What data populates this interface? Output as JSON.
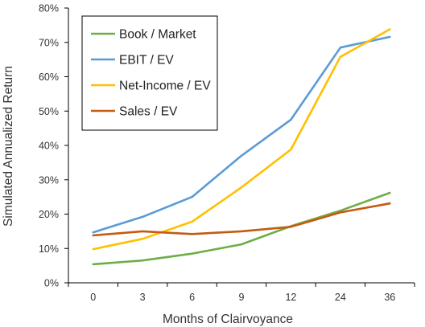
{
  "chart_data": {
    "type": "line",
    "title": "",
    "xlabel": "Months of Clairvoyance",
    "ylabel": "Simulated Annualized Return",
    "categories": [
      "0",
      "3",
      "6",
      "9",
      "12",
      "24",
      "36"
    ],
    "ylim": [
      0,
      0.8
    ],
    "yticks": [
      "0%",
      "10%",
      "20%",
      "30%",
      "40%",
      "50%",
      "60%",
      "70%",
      "80%"
    ],
    "grid": false,
    "legend_position": "top-left",
    "series": [
      {
        "name": "Book / Market",
        "color": "#70ad47",
        "values": [
          0.054,
          0.065,
          0.085,
          0.112,
          0.165,
          0.21,
          0.262
        ]
      },
      {
        "name": "EBIT / EV",
        "color": "#5b9bd5",
        "values": [
          0.147,
          0.192,
          0.25,
          0.37,
          0.475,
          0.685,
          0.716
        ]
      },
      {
        "name": "Net-Income / EV",
        "color": "#ffc000",
        "values": [
          0.098,
          0.128,
          0.178,
          0.278,
          0.388,
          0.658,
          0.738
        ]
      },
      {
        "name": "Sales / EV",
        "color": "#c55a11",
        "values": [
          0.138,
          0.15,
          0.142,
          0.15,
          0.163,
          0.205,
          0.231
        ]
      }
    ]
  }
}
